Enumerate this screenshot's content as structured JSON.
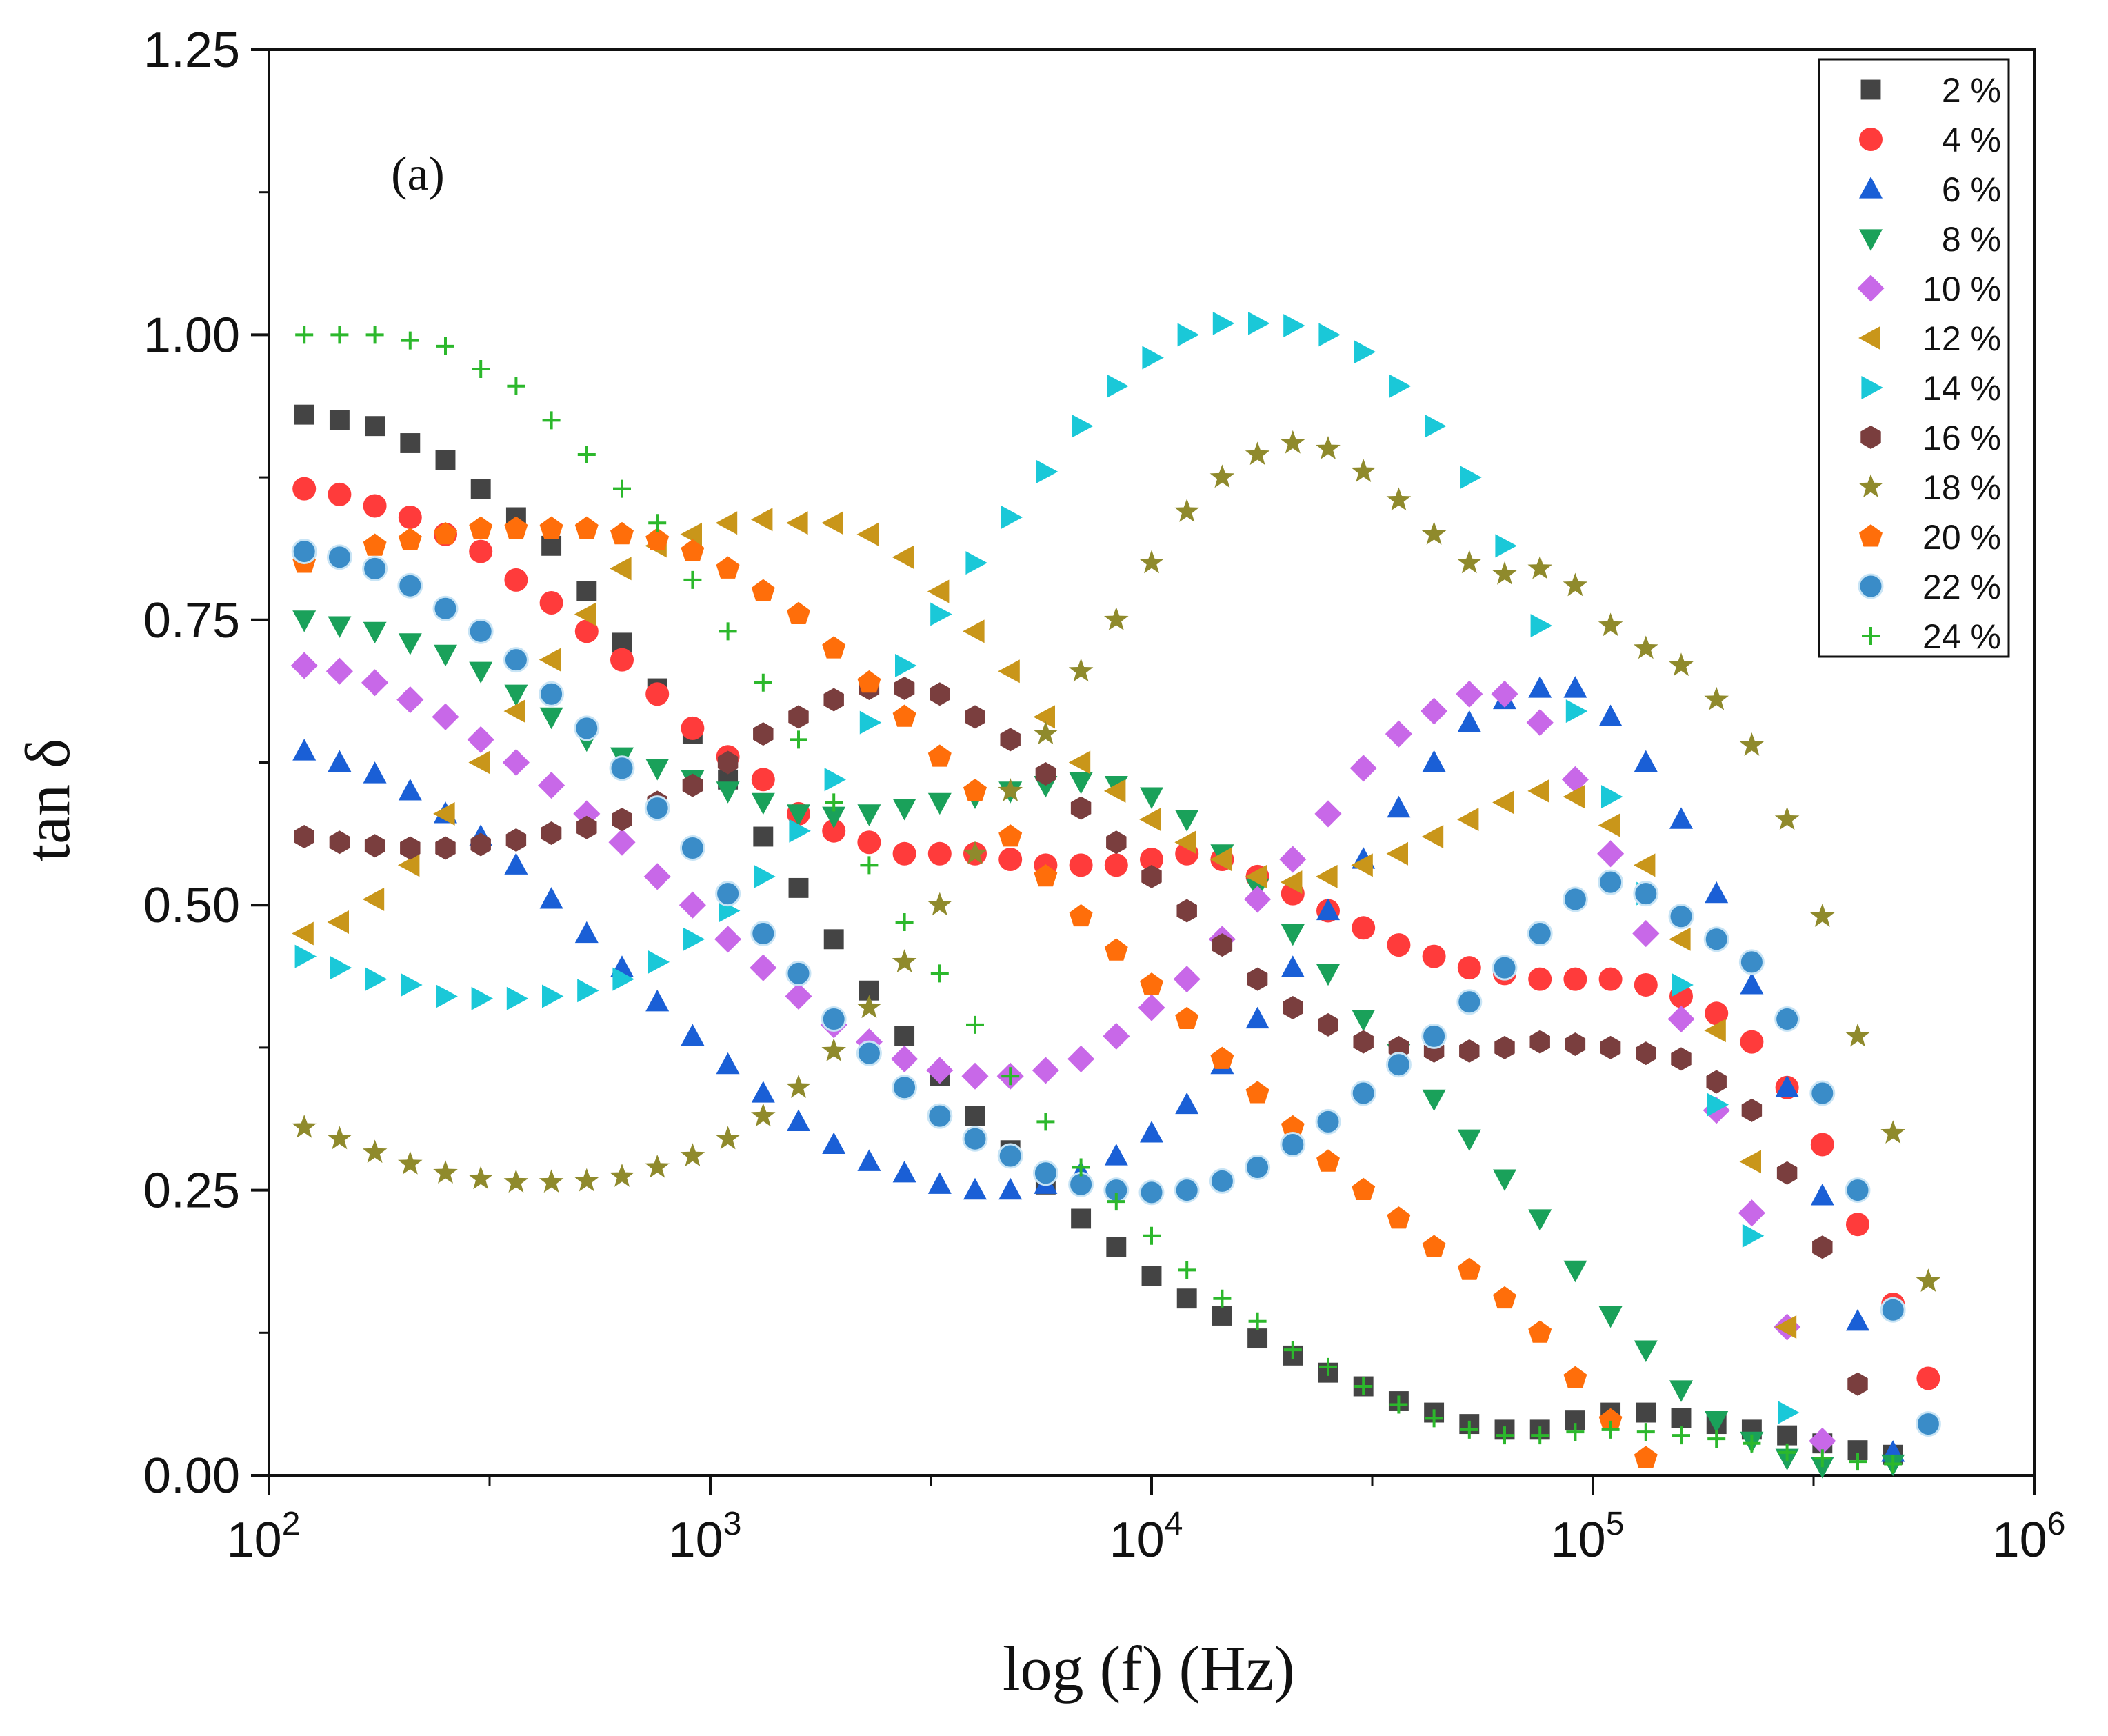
{
  "chart_data": {
    "type": "scatter",
    "panel_label": "(a)",
    "xlabel": "log (f) (Hz)",
    "ylabel": "tan δ",
    "xscale": "log",
    "xlim": [
      100,
      1000000
    ],
    "ylim": [
      0,
      1.25
    ],
    "x_ticks": [
      {
        "value": 100,
        "base": "10",
        "exp": "2"
      },
      {
        "value": 1000,
        "base": "10",
        "exp": "3"
      },
      {
        "value": 10000,
        "base": "10",
        "exp": "4"
      },
      {
        "value": 100000,
        "base": "10",
        "exp": "5"
      },
      {
        "value": 1000000,
        "base": "10",
        "exp": "6"
      }
    ],
    "y_ticks": [
      "0.00",
      "0.25",
      "0.50",
      "0.75",
      "1.00",
      "1.25"
    ],
    "legend_position": "top-right",
    "x_log10": [
      2.08,
      2.16,
      2.24,
      2.32,
      2.4,
      2.48,
      2.56,
      2.64,
      2.72,
      2.8,
      2.88,
      2.96,
      3.04,
      3.12,
      3.2,
      3.28,
      3.36,
      3.44,
      3.52,
      3.6,
      3.68,
      3.76,
      3.84,
      3.92,
      4.0,
      4.08,
      4.16,
      4.24,
      4.32,
      4.4,
      4.48,
      4.56,
      4.64,
      4.72,
      4.8,
      4.88,
      4.96,
      5.04,
      5.12,
      5.2,
      5.28,
      5.36,
      5.44,
      5.52,
      5.6,
      5.68,
      5.76,
      5.84
    ],
    "series": [
      {
        "name": "2 %",
        "marker": "square",
        "color": "#444444",
        "values": [
          0.93,
          0.925,
          0.92,
          0.905,
          0.89,
          0.865,
          0.84,
          0.815,
          0.775,
          0.73,
          0.69,
          0.65,
          0.61,
          0.56,
          0.515,
          0.47,
          0.425,
          0.385,
          0.35,
          0.315,
          0.285,
          0.255,
          0.225,
          0.2,
          0.175,
          0.155,
          0.14,
          0.12,
          0.105,
          0.09,
          0.078,
          0.065,
          0.055,
          0.045,
          0.04,
          0.04,
          0.048,
          0.055,
          0.055,
          0.05,
          0.045,
          0.04,
          0.035,
          0.028,
          0.022,
          0.018,
          null,
          null
        ]
      },
      {
        "name": "4 %",
        "marker": "circle",
        "color": "#ff3b3b",
        "values": [
          0.865,
          0.86,
          0.85,
          0.84,
          0.825,
          0.81,
          0.785,
          0.765,
          0.74,
          0.715,
          0.685,
          0.655,
          0.63,
          0.61,
          0.58,
          0.565,
          0.555,
          0.545,
          0.545,
          0.545,
          0.54,
          0.535,
          0.535,
          0.535,
          0.54,
          0.545,
          0.54,
          0.525,
          0.51,
          0.495,
          0.48,
          0.465,
          0.455,
          0.445,
          0.44,
          0.435,
          0.435,
          0.435,
          0.43,
          0.42,
          0.405,
          0.38,
          0.34,
          0.29,
          0.22,
          0.15,
          0.085,
          null
        ]
      },
      {
        "name": "6 %",
        "marker": "triangle-up",
        "color": "#1a5fd6",
        "values": [
          0.635,
          0.625,
          0.615,
          0.6,
          0.58,
          0.56,
          0.535,
          0.505,
          0.475,
          0.445,
          0.415,
          0.385,
          0.36,
          0.335,
          0.31,
          0.29,
          0.275,
          0.265,
          0.255,
          0.25,
          0.25,
          0.255,
          0.265,
          0.28,
          0.3,
          0.325,
          0.36,
          0.4,
          0.445,
          0.495,
          0.54,
          0.585,
          0.625,
          0.66,
          0.68,
          0.69,
          0.69,
          0.665,
          0.625,
          0.575,
          0.51,
          0.43,
          0.34,
          0.245,
          0.135,
          0.02,
          null,
          null
        ]
      },
      {
        "name": "8 %",
        "marker": "triangle-down",
        "color": "#1aa15a",
        "values": [
          0.75,
          0.745,
          0.74,
          0.73,
          0.72,
          0.705,
          0.685,
          0.665,
          0.645,
          0.63,
          0.62,
          0.61,
          0.6,
          0.59,
          0.58,
          0.578,
          0.58,
          0.585,
          0.59,
          0.595,
          0.6,
          0.605,
          0.608,
          0.605,
          0.595,
          0.575,
          0.545,
          0.515,
          0.475,
          0.44,
          0.4,
          0.37,
          0.33,
          0.295,
          0.26,
          0.225,
          0.18,
          0.14,
          0.11,
          0.075,
          0.048,
          0.03,
          0.015,
          0.008,
          null,
          0.01,
          null,
          null
        ]
      },
      {
        "name": "10 %",
        "marker": "diamond",
        "color": "#c868e8",
        "values": [
          0.71,
          0.705,
          0.695,
          0.68,
          0.665,
          0.645,
          0.625,
          0.605,
          0.58,
          0.555,
          0.525,
          0.5,
          0.47,
          0.445,
          0.42,
          0.395,
          0.38,
          0.365,
          0.355,
          0.35,
          0.35,
          0.355,
          0.365,
          0.385,
          0.41,
          0.435,
          0.47,
          0.505,
          0.54,
          0.58,
          0.62,
          0.65,
          0.67,
          0.685,
          0.685,
          0.66,
          0.61,
          0.545,
          0.475,
          0.4,
          0.32,
          0.23,
          0.13,
          0.03,
          null,
          null,
          null,
          null
        ]
      },
      {
        "name": "12 %",
        "marker": "triangle-left",
        "color": "#c9961a",
        "values": [
          0.475,
          0.485,
          0.505,
          0.535,
          0.58,
          0.625,
          0.67,
          0.715,
          0.755,
          0.795,
          0.815,
          0.825,
          0.835,
          0.838,
          0.835,
          0.835,
          0.825,
          0.805,
          0.775,
          0.74,
          0.705,
          0.665,
          0.625,
          0.6,
          0.575,
          0.555,
          0.54,
          0.525,
          0.52,
          0.525,
          0.535,
          0.545,
          0.56,
          0.575,
          0.59,
          0.6,
          0.595,
          0.57,
          0.535,
          0.47,
          0.39,
          0.275,
          0.13,
          null,
          null,
          null,
          null,
          null
        ]
      },
      {
        "name": "14 %",
        "marker": "triangle-right",
        "color": "#1ac8d8",
        "values": [
          0.455,
          0.445,
          0.435,
          0.43,
          0.42,
          0.418,
          0.418,
          0.42,
          0.425,
          0.435,
          0.45,
          0.47,
          0.495,
          0.525,
          0.565,
          0.61,
          0.66,
          0.71,
          0.755,
          0.8,
          0.84,
          0.88,
          0.92,
          0.955,
          0.98,
          1.0,
          1.01,
          1.01,
          1.008,
          1.0,
          0.985,
          0.955,
          0.92,
          0.875,
          0.815,
          0.745,
          0.67,
          0.595,
          0.51,
          0.43,
          0.325,
          0.21,
          0.055,
          null,
          null,
          null,
          null,
          null
        ]
      },
      {
        "name": "16 %",
        "marker": "hexagon",
        "color": "#7a3e3e",
        "values": [
          0.56,
          0.555,
          0.552,
          0.55,
          0.55,
          0.553,
          0.557,
          0.563,
          0.568,
          0.575,
          0.59,
          0.605,
          0.625,
          0.65,
          0.665,
          0.68,
          0.69,
          0.69,
          0.685,
          0.665,
          0.645,
          0.615,
          0.585,
          0.555,
          0.525,
          0.495,
          0.465,
          0.435,
          0.41,
          0.395,
          0.38,
          0.375,
          0.372,
          0.372,
          0.375,
          0.38,
          0.378,
          0.375,
          0.37,
          0.365,
          0.345,
          0.32,
          0.265,
          0.2,
          0.08,
          null,
          null,
          null
        ]
      },
      {
        "name": "18 %",
        "marker": "star",
        "color": "#8f8a2c",
        "values": [
          0.305,
          0.295,
          0.283,
          0.273,
          0.265,
          0.26,
          0.257,
          0.257,
          0.258,
          0.262,
          0.27,
          0.28,
          0.295,
          0.315,
          0.34,
          0.372,
          0.41,
          0.45,
          0.5,
          0.545,
          0.6,
          0.65,
          0.705,
          0.75,
          0.8,
          0.845,
          0.875,
          0.895,
          0.905,
          0.9,
          0.88,
          0.855,
          0.825,
          0.8,
          0.79,
          0.795,
          0.78,
          0.745,
          0.725,
          0.71,
          0.68,
          0.64,
          0.575,
          0.49,
          0.385,
          0.3,
          0.17,
          null
        ]
      },
      {
        "name": "20 %",
        "marker": "pentagon",
        "color": "#ff6e0a",
        "values": [
          0.8,
          0.805,
          0.815,
          0.82,
          0.825,
          0.83,
          0.83,
          0.83,
          0.83,
          0.825,
          0.82,
          0.81,
          0.795,
          0.775,
          0.755,
          0.725,
          0.695,
          0.665,
          0.63,
          0.6,
          0.56,
          0.525,
          0.49,
          0.46,
          0.43,
          0.4,
          0.365,
          0.335,
          0.305,
          0.275,
          0.25,
          0.225,
          0.2,
          0.18,
          0.155,
          0.125,
          0.085,
          0.048,
          0.015,
          null,
          null,
          null,
          null,
          null,
          null,
          null,
          null,
          null
        ]
      },
      {
        "name": "22 %",
        "marker": "sphere",
        "color": "#3a8cc8",
        "values": [
          0.81,
          0.805,
          0.795,
          0.78,
          0.76,
          0.74,
          0.715,
          0.685,
          0.655,
          0.62,
          0.585,
          0.55,
          0.51,
          0.475,
          0.44,
          0.4,
          0.37,
          0.34,
          0.315,
          0.295,
          0.28,
          0.265,
          0.255,
          0.25,
          0.248,
          0.25,
          0.258,
          0.27,
          0.29,
          0.31,
          0.335,
          0.36,
          0.385,
          0.415,
          0.445,
          0.475,
          0.505,
          0.52,
          0.51,
          0.49,
          0.47,
          0.45,
          0.4,
          0.335,
          0.25,
          0.145,
          0.045,
          null
        ]
      },
      {
        "name": "24 %",
        "marker": "plus",
        "color": "#2cb82c",
        "values": [
          1.0,
          1.0,
          1.0,
          0.995,
          0.99,
          0.97,
          0.955,
          0.925,
          0.895,
          0.865,
          0.835,
          0.785,
          0.74,
          0.695,
          0.645,
          0.59,
          0.535,
          0.485,
          0.44,
          0.395,
          0.35,
          0.31,
          0.27,
          0.24,
          0.21,
          0.18,
          0.155,
          0.135,
          0.11,
          0.095,
          0.078,
          0.062,
          0.05,
          0.04,
          0.035,
          0.035,
          0.038,
          0.04,
          0.038,
          0.035,
          0.032,
          0.028,
          0.02,
          0.015,
          0.012,
          0.01,
          null,
          null
        ]
      }
    ]
  }
}
